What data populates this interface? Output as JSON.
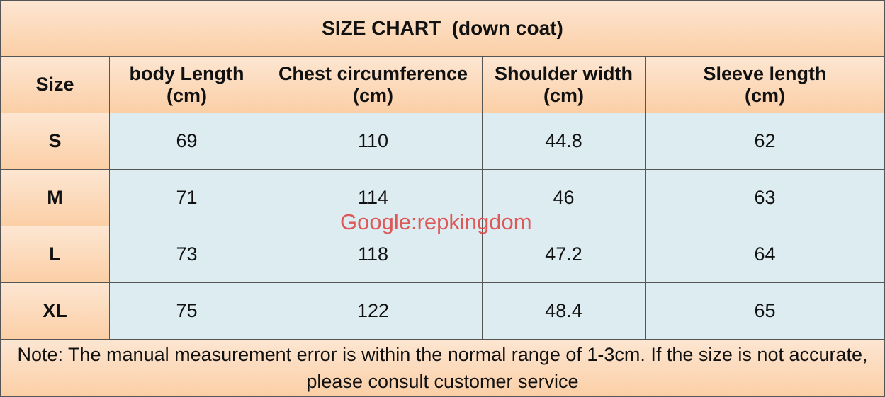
{
  "title": "SIZE CHART  (down coat)",
  "table": {
    "header": [
      [
        "Size"
      ],
      [
        "body Length",
        "(cm)"
      ],
      [
        "Chest circumference",
        "(cm)"
      ],
      [
        "Shoulder width",
        "(cm)"
      ],
      [
        "Sleeve length",
        "(cm)"
      ]
    ],
    "rows": [
      [
        "S",
        69,
        110,
        44.8,
        62
      ],
      [
        "M",
        71,
        114,
        46,
        63
      ],
      [
        "L",
        73,
        118,
        47.2,
        64
      ],
      [
        "XL",
        75,
        122,
        48.4,
        65
      ]
    ]
  },
  "note": "Note: The manual measurement error is within the normal range of 1-3cm. If the size is not accurate, please consult customer service",
  "watermark": "Google:repkingdom"
}
